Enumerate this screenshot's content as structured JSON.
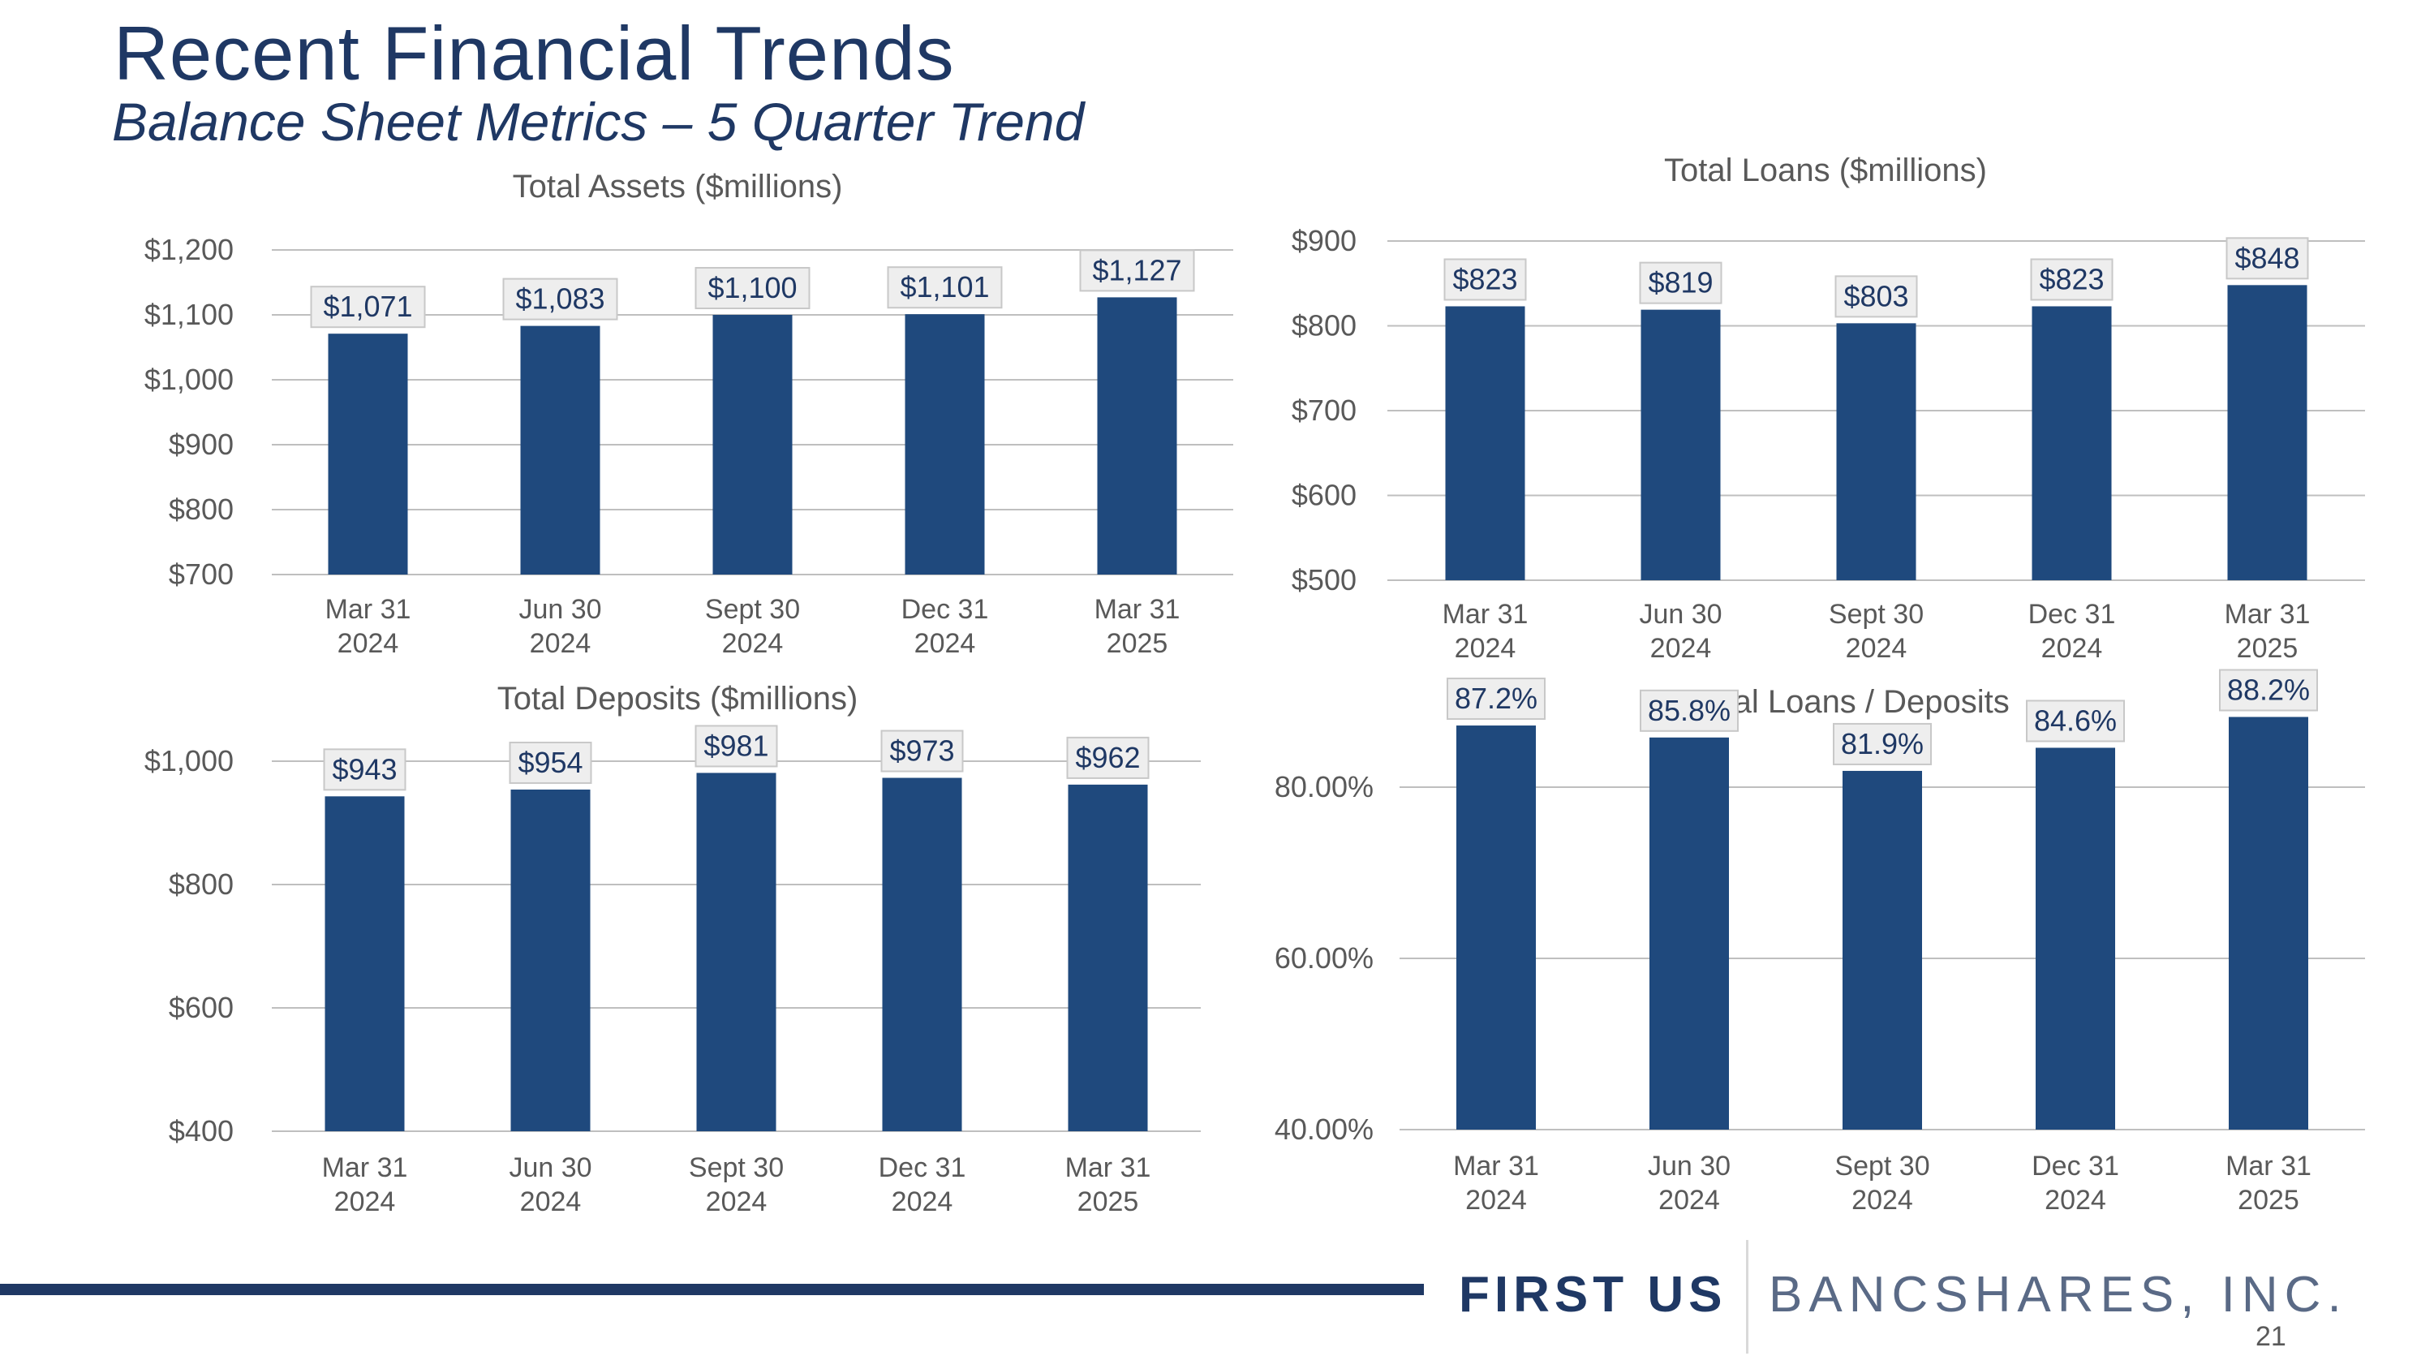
{
  "header": {
    "title": "Recent Financial Trends",
    "subtitle": "Balance Sheet Metrics – 5 Quarter Trend"
  },
  "colors": {
    "bar": "#1f497d",
    "grid": "#bfbfbf",
    "label_box": "#eeeeee"
  },
  "chart_data": [
    {
      "type": "bar",
      "title": "Total Assets ($millions)",
      "categories": [
        [
          "Mar 31",
          "2024"
        ],
        [
          "Jun 30",
          "2024"
        ],
        [
          "Sept 30",
          "2024"
        ],
        [
          "Dec 31",
          "2024"
        ],
        [
          "Mar 31",
          "2025"
        ]
      ],
      "values": [
        1071,
        1083,
        1100,
        1101,
        1127
      ],
      "data_labels": [
        "$1,071",
        "$1,083",
        "$1,100",
        "$1,101",
        "$1,127"
      ],
      "ylim": [
        700,
        1200
      ],
      "yticks": [
        700,
        800,
        900,
        1000,
        1100,
        1200
      ],
      "ytick_labels": [
        "$700",
        "$800",
        "$900",
        "$1,000",
        "$1,100",
        "$1,200"
      ],
      "grid": true
    },
    {
      "type": "bar",
      "title": "Total Loans ($millions)",
      "categories": [
        [
          "Mar 31",
          "2024"
        ],
        [
          "Jun 30",
          "2024"
        ],
        [
          "Sept 30",
          "2024"
        ],
        [
          "Dec  31",
          "2024"
        ],
        [
          "Mar  31",
          "2025"
        ]
      ],
      "values": [
        823,
        819,
        803,
        823,
        848
      ],
      "data_labels": [
        "$823",
        "$819",
        "$803",
        "$823",
        "$848"
      ],
      "ylim": [
        500,
        900
      ],
      "yticks": [
        500,
        600,
        700,
        800,
        900
      ],
      "ytick_labels": [
        "$500",
        "$600",
        "$700",
        "$800",
        "$900"
      ],
      "grid": true
    },
    {
      "type": "bar",
      "title": "Total Deposits ($millions)",
      "categories": [
        [
          "Mar 31",
          "2024"
        ],
        [
          "Jun 30",
          "2024"
        ],
        [
          "Sept 30",
          "2024"
        ],
        [
          "Dec 31",
          "2024"
        ],
        [
          "Mar 31",
          "2025"
        ]
      ],
      "values": [
        943,
        954,
        981,
        973,
        962
      ],
      "data_labels": [
        "$943",
        "$954",
        "$981",
        "$973",
        "$962"
      ],
      "ylim": [
        400,
        1000
      ],
      "yticks": [
        400,
        600,
        800,
        1000
      ],
      "ytick_labels": [
        "$400",
        "$600",
        "$800",
        "$1,000"
      ],
      "grid": true
    },
    {
      "type": "bar",
      "title": "Total Loans / Deposits",
      "categories": [
        [
          "Mar 31",
          "2024"
        ],
        [
          "Jun 30",
          "2024"
        ],
        [
          "Sept 30",
          "2024"
        ],
        [
          "Dec 31",
          "2024"
        ],
        [
          "Mar 31",
          "2025"
        ]
      ],
      "values": [
        87.2,
        85.8,
        81.9,
        84.6,
        88.2
      ],
      "data_labels": [
        "87.2%",
        "85.8%",
        "81.9%",
        "84.6%",
        "88.2%"
      ],
      "ylim": [
        40,
        80
      ],
      "yticks": [
        40,
        60,
        80
      ],
      "ytick_labels": [
        "40.00%",
        "60.00%",
        "80.00%"
      ],
      "grid": true
    }
  ],
  "footer": {
    "logo_primary": "FIRST US",
    "logo_secondary": "BANCSHARES, INC.",
    "page_number": "21"
  }
}
